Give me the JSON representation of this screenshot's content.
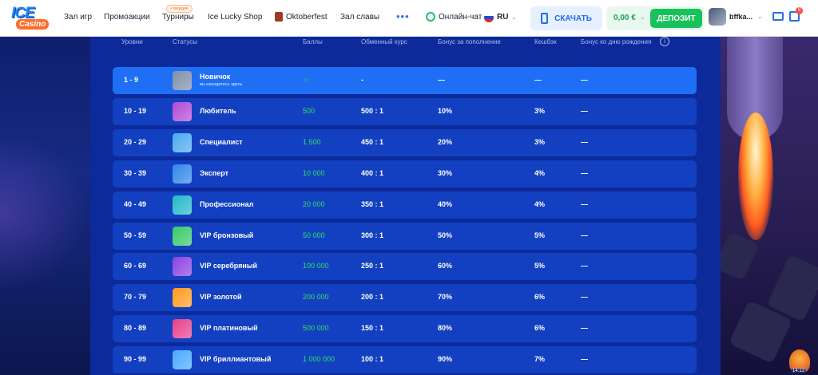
{
  "header": {
    "logo_top": "ICE",
    "logo_bottom": "Casino",
    "nav": [
      {
        "label": "Зал игр"
      },
      {
        "label": "Промоакции"
      },
      {
        "label": "Турниры",
        "badge": "• текущие"
      },
      {
        "label": "Ice Lucky Shop"
      },
      {
        "label": "Oktoberfest"
      },
      {
        "label": "Зал славы"
      }
    ],
    "more_label": "•••",
    "chat_label": "Онлайн-чат",
    "language": "RU",
    "download_label": "СКАЧАТЬ",
    "balance": "0,00 €",
    "deposit_label": "ДЕПОЗИТ",
    "username": "bffka...",
    "gift_count": "8"
  },
  "table": {
    "columns": [
      "Уровни",
      "Статусы",
      "Баллы",
      "Обменный курс",
      "Бонус за пополнение",
      "Кешбэк",
      "Бонус ко дню рождения"
    ],
    "info_label": "i",
    "rows": [
      {
        "level": "1 - 9",
        "status": "Новичок",
        "sub": "вы находитесь здесь",
        "points": "☆",
        "rate": "-",
        "deposit_bonus": "—",
        "cashback": "—",
        "birthday": "—",
        "current": true,
        "icon_color": "#7f8fa8"
      },
      {
        "level": "10 - 19",
        "status": "Любитель",
        "sub": "",
        "points": "500",
        "rate": "500 : 1",
        "deposit_bonus": "10%",
        "cashback": "3%",
        "birthday": "—",
        "current": false,
        "icon_color": "#b04ad6"
      },
      {
        "level": "20 - 29",
        "status": "Специалист",
        "sub": "",
        "points": "1 500",
        "rate": "450 : 1",
        "deposit_bonus": "20%",
        "cashback": "3%",
        "birthday": "—",
        "current": false,
        "icon_color": "#4aa8f0"
      },
      {
        "level": "30 - 39",
        "status": "Эксперт",
        "sub": "",
        "points": "10 000",
        "rate": "400 : 1",
        "deposit_bonus": "30%",
        "cashback": "4%",
        "birthday": "—",
        "current": false,
        "icon_color": "#2f86e8"
      },
      {
        "level": "40 - 49",
        "status": "Профессионал",
        "sub": "",
        "points": "20 000",
        "rate": "350 : 1",
        "deposit_bonus": "40%",
        "cashback": "4%",
        "birthday": "—",
        "current": false,
        "icon_color": "#22b8c8"
      },
      {
        "level": "50 - 59",
        "status": "VIP бронзовый",
        "sub": "",
        "points": "50 000",
        "rate": "300 : 1",
        "deposit_bonus": "50%",
        "cashback": "5%",
        "birthday": "—",
        "current": false,
        "icon_color": "#38c86a"
      },
      {
        "level": "60 - 69",
        "status": "VIP серебряный",
        "sub": "",
        "points": "100 000",
        "rate": "250 : 1",
        "deposit_bonus": "60%",
        "cashback": "5%",
        "birthday": "—",
        "current": false,
        "icon_color": "#8a42e0"
      },
      {
        "level": "70 - 79",
        "status": "VIP золотой",
        "sub": "",
        "points": "200 000",
        "rate": "200 : 1",
        "deposit_bonus": "70%",
        "cashback": "6%",
        "birthday": "—",
        "current": false,
        "icon_color": "#ff9a1e"
      },
      {
        "level": "80 - 89",
        "status": "VIP платиновый",
        "sub": "",
        "points": "500 000",
        "rate": "150 : 1",
        "deposit_bonus": "80%",
        "cashback": "6%",
        "birthday": "—",
        "current": false,
        "icon_color": "#e8408a"
      },
      {
        "level": "90 - 99",
        "status": "VIP бриллиантовый",
        "sub": "",
        "points": "1 000 000",
        "rate": "100 : 1",
        "deposit_bonus": "90%",
        "cashback": "7%",
        "birthday": "—",
        "current": false,
        "icon_color": "#48a8ff"
      }
    ]
  },
  "mascot_time": "14:13"
}
